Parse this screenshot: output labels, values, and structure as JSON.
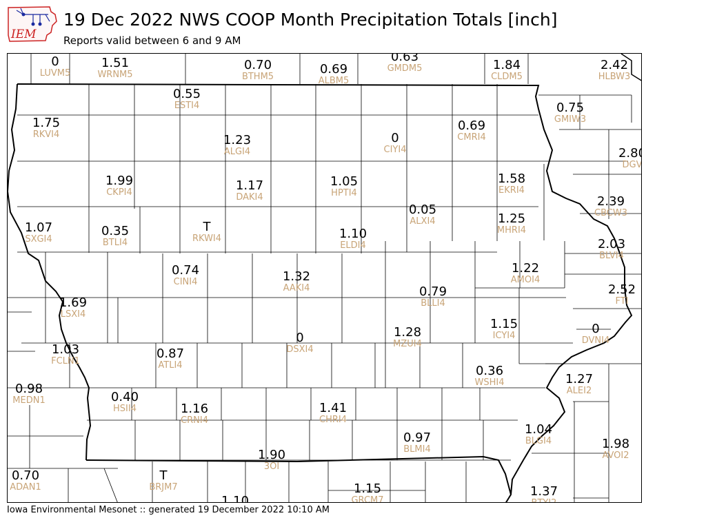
{
  "header": {
    "logo_text": "IEM",
    "title": "19 Dec 2022 NWS COOP Month Precipitation Totals [inch]",
    "subtitle": "Reports valid between 6 and 9 AM"
  },
  "footer": {
    "text": "Iowa Environmental Mesonet :: generated 19 December 2022 10:10 AM"
  },
  "colors": {
    "value_text": "#000000",
    "station_label": "#c8a477",
    "state_border": "#000000",
    "county_border": "#000000",
    "logo_red": "#cc2222",
    "logo_blue": "#1a2aa0"
  },
  "map": {
    "stations": [
      {
        "id": "LUVM5",
        "value": "0"
      },
      {
        "id": "WRNM5",
        "value": "1.51"
      },
      {
        "id": "BTHM5",
        "value": "0.70"
      },
      {
        "id": "ALBM5",
        "value": "0.69"
      },
      {
        "id": "GMDM5",
        "value": "0.63"
      },
      {
        "id": "CLDM5",
        "value": "1.84"
      },
      {
        "id": "HLBW3",
        "value": "2.42"
      },
      {
        "id": "ESTI4",
        "value": "0.55"
      },
      {
        "id": "RKVI4",
        "value": "1.75"
      },
      {
        "id": "GMIW3",
        "value": "0.75"
      },
      {
        "id": "ALGI4",
        "value": "1.23"
      },
      {
        "id": "CIYI4",
        "value": "0"
      },
      {
        "id": "CMRI4",
        "value": "0.69"
      },
      {
        "id": "DGV",
        "value": "2.80"
      },
      {
        "id": "CKPI4",
        "value": "1.99"
      },
      {
        "id": "DAKI4",
        "value": "1.17"
      },
      {
        "id": "HPTI4",
        "value": "1.05"
      },
      {
        "id": "EKRI4",
        "value": "1.58"
      },
      {
        "id": "CBCW3",
        "value": "2.39"
      },
      {
        "id": "SXGI4",
        "value": "1.07"
      },
      {
        "id": "BTLI4",
        "value": "0.35"
      },
      {
        "id": "RKWI4",
        "value": "T"
      },
      {
        "id": "ALXI4",
        "value": "0.05"
      },
      {
        "id": "ELDI4",
        "value": "1.10"
      },
      {
        "id": "MHRI4",
        "value": "1.25"
      },
      {
        "id": "BLVI4",
        "value": "2.03"
      },
      {
        "id": "CINI4",
        "value": "0.74"
      },
      {
        "id": "AAKI4",
        "value": "1.32"
      },
      {
        "id": "AMOI4",
        "value": "1.22"
      },
      {
        "id": "BLLI4",
        "value": "0.79"
      },
      {
        "id": "FTI",
        "value": "2.52"
      },
      {
        "id": "LSXI4",
        "value": "1.69"
      },
      {
        "id": "ICYI4",
        "value": "1.15"
      },
      {
        "id": "DVNI4",
        "value": "0"
      },
      {
        "id": "DSXI4",
        "value": "0"
      },
      {
        "id": "MZUI4",
        "value": "1.28"
      },
      {
        "id": "FCLN1",
        "value": "1.03"
      },
      {
        "id": "ATLI4",
        "value": "0.87"
      },
      {
        "id": "WSHI4",
        "value": "0.36"
      },
      {
        "id": "ALEI2",
        "value": "1.27"
      },
      {
        "id": "MEDN1",
        "value": "0.98"
      },
      {
        "id": "HSII4",
        "value": "0.40"
      },
      {
        "id": "CRNI4",
        "value": "1.16"
      },
      {
        "id": "CHRI4",
        "value": "1.41"
      },
      {
        "id": "BLMI4",
        "value": "0.97"
      },
      {
        "id": "BLGI4",
        "value": "1.04"
      },
      {
        "id": "AVOI2",
        "value": "1.98"
      },
      {
        "id": "3OI",
        "value": "1.90"
      },
      {
        "id": "ADAN1",
        "value": "0.70"
      },
      {
        "id": "BRJM7",
        "value": "T"
      },
      {
        "id": "GRCM7",
        "value": "1.15"
      },
      {
        "id": "BTYI2",
        "value": "1.37"
      },
      {
        "id": "",
        "value": "1.10"
      }
    ]
  }
}
